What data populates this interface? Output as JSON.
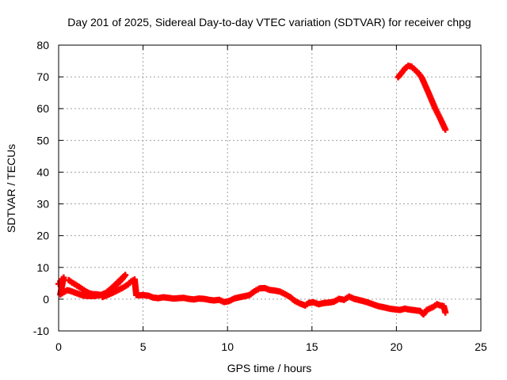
{
  "chart_data": {
    "type": "scatter",
    "title": "Day 201 of 2025, Sidereal Day-to-day VTEC variation (SDTVAR) for receiver chpg",
    "xlabel": "GPS time / hours",
    "ylabel": "SDTVAR / TECUs",
    "xlim": [
      0,
      25
    ],
    "ylim": [
      -10,
      80
    ],
    "xticks": [
      0,
      5,
      10,
      15,
      20,
      25
    ],
    "yticks": [
      -10,
      0,
      10,
      20,
      30,
      40,
      50,
      60,
      70,
      80
    ],
    "grid": true,
    "marker": "plus",
    "series": [
      {
        "name": "SDTVAR",
        "color": "#ff0000",
        "points": [
          [
            0.0,
            4.8
          ],
          [
            0.1,
            5.6
          ],
          [
            0.2,
            6.3
          ],
          [
            0.3,
            6.8
          ],
          [
            0.1,
            1.5
          ],
          [
            0.3,
            2.2
          ],
          [
            0.5,
            2.8
          ],
          [
            0.7,
            2.6
          ],
          [
            0.9,
            2.2
          ],
          [
            1.1,
            1.8
          ],
          [
            1.3,
            1.4
          ],
          [
            1.5,
            1.1
          ],
          [
            1.8,
            1.0
          ],
          [
            2.1,
            1.0
          ],
          [
            2.4,
            1.2
          ],
          [
            2.7,
            1.5
          ],
          [
            0.6,
            6.0
          ],
          [
            0.8,
            5.2
          ],
          [
            1.0,
            4.6
          ],
          [
            1.2,
            3.9
          ],
          [
            1.4,
            3.2
          ],
          [
            1.6,
            2.5
          ],
          [
            1.8,
            1.9
          ],
          [
            2.0,
            1.6
          ],
          [
            2.3,
            1.5
          ],
          [
            2.5,
            1.3
          ],
          [
            2.8,
            2.0
          ],
          [
            3.0,
            2.8
          ],
          [
            3.2,
            3.6
          ],
          [
            3.4,
            4.4
          ],
          [
            3.6,
            5.4
          ],
          [
            3.8,
            6.6
          ],
          [
            3.95,
            7.6
          ],
          [
            2.6,
            0.7
          ],
          [
            2.9,
            1.3
          ],
          [
            3.2,
            2.0
          ],
          [
            3.5,
            2.8
          ],
          [
            3.8,
            3.6
          ],
          [
            4.1,
            4.6
          ],
          [
            4.3,
            5.6
          ],
          [
            4.5,
            6.2
          ],
          [
            4.6,
            1.3
          ],
          [
            4.8,
            1.2
          ],
          [
            5.0,
            1.3
          ],
          [
            5.3,
            1.1
          ],
          [
            5.6,
            0.5
          ],
          [
            5.9,
            0.3
          ],
          [
            6.2,
            0.6
          ],
          [
            6.5,
            0.4
          ],
          [
            6.8,
            0.2
          ],
          [
            7.1,
            0.3
          ],
          [
            7.4,
            0.4
          ],
          [
            7.7,
            0.1
          ],
          [
            8.0,
            -0.1
          ],
          [
            8.3,
            0.2
          ],
          [
            8.6,
            0.1
          ],
          [
            8.9,
            -0.2
          ],
          [
            9.2,
            -0.4
          ],
          [
            9.5,
            -0.2
          ],
          [
            9.8,
            -0.9
          ],
          [
            10.1,
            -0.6
          ],
          [
            10.4,
            0.2
          ],
          [
            10.7,
            0.6
          ],
          [
            11.0,
            0.9
          ],
          [
            11.3,
            1.3
          ],
          [
            11.6,
            2.5
          ],
          [
            11.9,
            3.4
          ],
          [
            12.2,
            3.5
          ],
          [
            12.5,
            2.9
          ],
          [
            12.8,
            2.7
          ],
          [
            13.1,
            2.4
          ],
          [
            13.4,
            1.6
          ],
          [
            13.7,
            0.7
          ],
          [
            14.0,
            -0.6
          ],
          [
            14.3,
            -1.4
          ],
          [
            14.6,
            -2.0
          ],
          [
            14.8,
            -1.2
          ],
          [
            15.1,
            -1.0
          ],
          [
            15.4,
            -1.6
          ],
          [
            15.7,
            -1.2
          ],
          [
            16.0,
            -1.1
          ],
          [
            16.3,
            -0.8
          ],
          [
            16.6,
            0.1
          ],
          [
            16.9,
            -0.2
          ],
          [
            17.2,
            0.8
          ],
          [
            17.5,
            0.1
          ],
          [
            17.8,
            -0.3
          ],
          [
            18.1,
            -0.7
          ],
          [
            18.4,
            -1.2
          ],
          [
            18.7,
            -1.8
          ],
          [
            19.0,
            -2.3
          ],
          [
            19.3,
            -2.6
          ],
          [
            19.6,
            -3.0
          ],
          [
            19.9,
            -3.2
          ],
          [
            20.2,
            -3.4
          ],
          [
            20.5,
            -3.0
          ],
          [
            20.8,
            -3.3
          ],
          [
            21.1,
            -3.5
          ],
          [
            21.4,
            -3.7
          ],
          [
            21.6,
            -4.8
          ],
          [
            21.8,
            -3.4
          ],
          [
            22.0,
            -2.9
          ],
          [
            22.2,
            -2.4
          ],
          [
            22.4,
            -1.6
          ],
          [
            22.6,
            -2.0
          ],
          [
            22.8,
            -2.2
          ],
          [
            22.9,
            -4.2
          ],
          [
            20.1,
            69.9
          ],
          [
            20.3,
            71.2
          ],
          [
            20.5,
            72.6
          ],
          [
            20.7,
            73.5
          ],
          [
            20.9,
            73.2
          ],
          [
            21.1,
            72.2
          ],
          [
            21.3,
            71.2
          ],
          [
            21.5,
            69.8
          ],
          [
            21.7,
            67.4
          ],
          [
            21.9,
            65.0
          ],
          [
            22.1,
            62.5
          ],
          [
            22.3,
            60.0
          ],
          [
            22.5,
            57.9
          ],
          [
            22.7,
            55.7
          ],
          [
            22.9,
            53.4
          ]
        ]
      }
    ]
  }
}
